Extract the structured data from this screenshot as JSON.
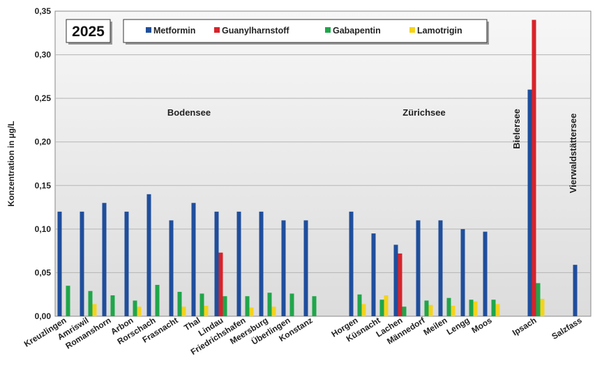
{
  "chart_data": {
    "type": "bar",
    "title": "",
    "year_label": "2025",
    "ylabel": "Konzentration in µg/L",
    "xlabel": "",
    "ylim": [
      0,
      0.35
    ],
    "yticks": [
      "0,00",
      "0,05",
      "0,10",
      "0,15",
      "0,20",
      "0,25",
      "0,30",
      "0,35"
    ],
    "grid": "horizontal",
    "legend_position": "top",
    "categories": [
      "Kreuzlingen",
      "Amriswil",
      "Romanshorn",
      "Arbon",
      "Rorschach",
      "Frasnacht",
      "Thal",
      "Lindau",
      "Friedrichshafen",
      "Meersburg",
      "Überlingen",
      "Konstanz",
      "Horgen",
      "Küsnacht",
      "Lachen",
      "Männedorf",
      "Meilen",
      "Lengg",
      "Moos",
      "Ipsach",
      "Salzfass"
    ],
    "series": [
      {
        "name": "Metformin",
        "color": "#1f4e9c",
        "values": [
          0.12,
          0.12,
          0.13,
          0.12,
          0.14,
          0.11,
          0.13,
          0.12,
          0.12,
          0.12,
          0.11,
          0.11,
          0.12,
          0.095,
          0.082,
          0.11,
          0.11,
          0.1,
          0.097,
          0.26,
          0.059
        ]
      },
      {
        "name": "Guanylharnstoff",
        "color": "#d8232a",
        "values": [
          null,
          null,
          null,
          null,
          null,
          null,
          null,
          0.073,
          null,
          null,
          null,
          null,
          null,
          null,
          0.072,
          null,
          null,
          null,
          null,
          0.34,
          null
        ]
      },
      {
        "name": "Gabapentin",
        "color": "#1fa64a",
        "values": [
          0.035,
          0.029,
          0.024,
          0.018,
          0.036,
          0.028,
          0.026,
          0.023,
          0.023,
          0.027,
          0.026,
          0.023,
          0.025,
          0.019,
          0.011,
          0.018,
          0.021,
          0.019,
          0.019,
          0.038,
          null
        ]
      },
      {
        "name": "Lamotrigin",
        "color": "#f5d31b",
        "values": [
          null,
          0.014,
          null,
          0.011,
          null,
          0.011,
          0.012,
          null,
          0.01,
          0.011,
          null,
          null,
          0.014,
          0.024,
          null,
          0.013,
          0.012,
          0.017,
          0.014,
          0.02,
          null
        ]
      }
    ],
    "regions": [
      {
        "label": "Bodensee",
        "orientation": "horizontal"
      },
      {
        "label": "Zürichsee",
        "orientation": "horizontal"
      },
      {
        "label": "Bielersee",
        "orientation": "vertical"
      },
      {
        "label": "Vierwaldstättersee",
        "orientation": "vertical"
      }
    ]
  }
}
